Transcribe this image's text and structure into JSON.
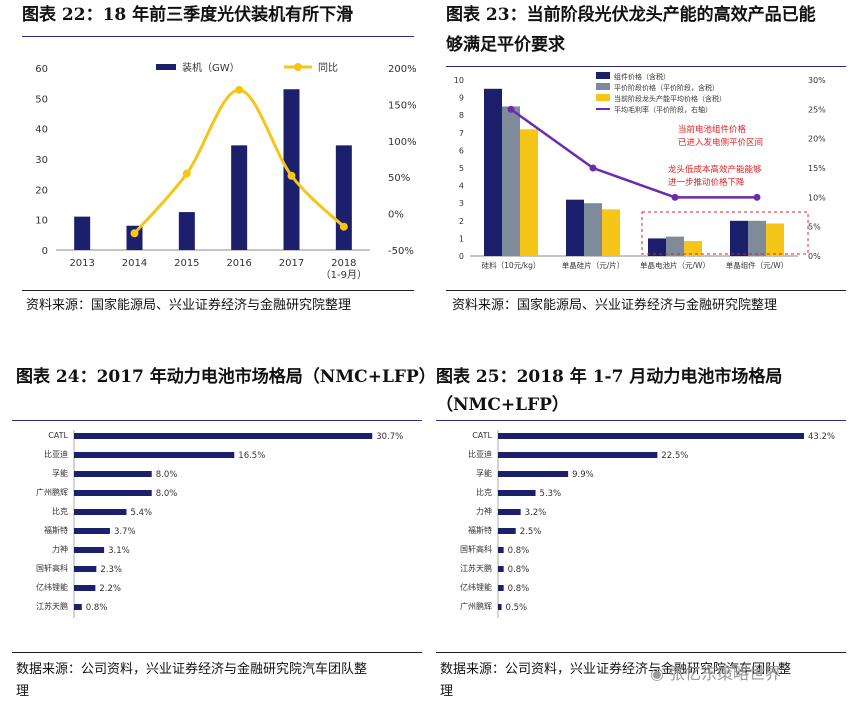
{
  "charts": {
    "c22": {
      "title": "图表 22：18 年前三季度光伏装机有所下滑",
      "source": "资料来源：国家能源局、兴业证券经济与金融研究院整理"
    },
    "c23": {
      "title_line1": "图表 23：当前阶段光伏龙头产能的高效产品已能",
      "title_line2": "够满足平价要求",
      "source": "资料来源：国家能源局、兴业证券经济与金融研究院整理",
      "annotation1": [
        "当前电池组件价格",
        "已进入发电侧平价区间"
      ],
      "annotation2": [
        "龙头低成本高效产能能够",
        "进一步推动价格下降"
      ]
    },
    "c24": {
      "title": "图表 24：2017 年动力电池市场格局（NMC+LFP）",
      "source": "数据来源：公司资料，兴业证券经济与金融研究院汽车团队整",
      "source2": "理"
    },
    "c25": {
      "title_line1": "图表 25：2018 年 1-7 月动力电池市场格局",
      "title_line2": "（NMC+LFP）",
      "source": "数据来源：公司资料，兴业证券经济与金融研究院汽车团队整",
      "source2": "理"
    }
  },
  "watermark": "张忆东策略世界",
  "chart_data": [
    {
      "id": "c22",
      "type": "bar",
      "categories": [
        "2013",
        "2014",
        "2015",
        "2016",
        "2017",
        "2018\n（1-9月）"
      ],
      "series": [
        {
          "name": "装机（GW）",
          "type": "bar",
          "color": "#1c1f6b",
          "values": [
            11,
            8,
            12.5,
            34.5,
            53,
            34.5
          ]
        },
        {
          "name": "同比",
          "type": "line",
          "axis": "right",
          "color": "#f5c518",
          "values": [
            null,
            -27,
            55,
            170,
            52,
            -18
          ]
        }
      ],
      "ylim": [
        0,
        60
      ],
      "yticks": [
        "0",
        "10",
        "20",
        "30",
        "40",
        "50",
        "60"
      ],
      "y2lim": [
        -50,
        200
      ],
      "y2ticks": [
        "-50%",
        "0%",
        "50%",
        "100%",
        "150%",
        "200%"
      ]
    },
    {
      "id": "c23",
      "type": "bar",
      "categories": [
        "硅料（10元/kg）",
        "单晶硅片（元/片）",
        "单晶电池片（元/W）",
        "单晶组件（元/W）"
      ],
      "series": [
        {
          "name": "组件价格（含税）",
          "type": "bar",
          "color": "#1c1f6b",
          "values": [
            9.5,
            3.2,
            1.0,
            2.0
          ]
        },
        {
          "name": "平价阶段价格（平价阶段，含税）",
          "type": "bar",
          "color": "#7f8b9a",
          "values": [
            8.5,
            3.0,
            1.1,
            2.0
          ]
        },
        {
          "name": "当前阶段龙头产能平均价格（含税）",
          "type": "bar",
          "color": "#f5c518",
          "values": [
            7.2,
            2.65,
            0.85,
            1.85
          ]
        },
        {
          "name": "平均毛利率（平价阶段，右轴）",
          "type": "line",
          "axis": "right",
          "color": "#6a2bb0",
          "values": [
            0.25,
            0.15,
            0.1,
            0.1
          ]
        }
      ],
      "ylim": [
        0,
        10
      ],
      "yticks": [
        "0",
        "1",
        "2",
        "3",
        "4",
        "5",
        "6",
        "7",
        "8",
        "9",
        "10"
      ],
      "y2lim": [
        0,
        0.3
      ],
      "y2ticks": [
        "0%",
        "5%",
        "10%",
        "15%",
        "20%",
        "25%",
        "30%"
      ]
    },
    {
      "id": "c24",
      "type": "bar",
      "orientation": "horizontal",
      "categories": [
        "CATL",
        "比亚迪",
        "孚能",
        "广州鹏辉",
        "比克",
        "福斯特",
        "力神",
        "国轩高科",
        "亿纬锂能",
        "江苏天鹏"
      ],
      "values": [
        30.7,
        16.5,
        8.0,
        8.0,
        5.4,
        3.7,
        3.1,
        2.3,
        2.2,
        0.8
      ],
      "labels": [
        "30.7%",
        "16.5%",
        "8.0%",
        "8.0%",
        "5.4%",
        "3.7%",
        "3.1%",
        "2.3%",
        "2.2%",
        "0.8%"
      ],
      "xlim": [
        0,
        35
      ],
      "color": "#1c1f6b"
    },
    {
      "id": "c25",
      "type": "bar",
      "orientation": "horizontal",
      "categories": [
        "CATL",
        "比亚迪",
        "孚能",
        "比克",
        "力神",
        "福斯特",
        "国轩高科",
        "江苏天鹏",
        "亿纬锂能",
        "广州鹏辉"
      ],
      "values": [
        43.2,
        22.5,
        9.9,
        5.3,
        3.2,
        2.5,
        0.8,
        0.8,
        0.8,
        0.5
      ],
      "labels": [
        "43.2%",
        "22.5%",
        "9.9%",
        "5.3%",
        "3.2%",
        "2.5%",
        "0.8%",
        "0.8%",
        "0.8%",
        "0.5%"
      ],
      "xlim": [
        0,
        48
      ],
      "color": "#1c1f6b"
    }
  ]
}
